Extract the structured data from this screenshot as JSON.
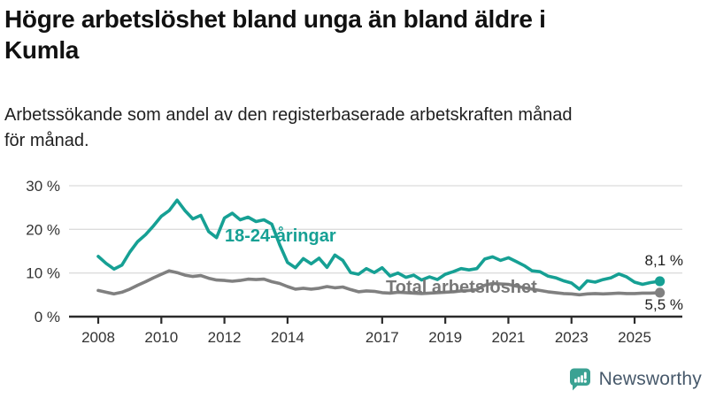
{
  "header": {
    "title_line1": "Högre arbetslöshet bland unga än bland äldre i",
    "title_line2": "Kumla",
    "subtitle_line1": "Arbetssökande som andel av den registerbaserade arbetskraften månad",
    "subtitle_line2": "för månad."
  },
  "chart_data": {
    "type": "line",
    "x_ticks": [
      "2008",
      "2010",
      "2012",
      "2014",
      "2017",
      "2019",
      "2021",
      "2023",
      "2025"
    ],
    "y_ticks": [
      "30 %",
      "20 %",
      "10 %",
      "0 %"
    ],
    "ylim": [
      0,
      30
    ],
    "grid": "horizontal",
    "series": [
      {
        "name": "18-24-åringar",
        "color": "#16A094",
        "end_label": "8,1 %",
        "end_value": 8.1,
        "points": [
          [
            2008.0,
            13.8
          ],
          [
            2008.25,
            12.2
          ],
          [
            2008.5,
            10.9
          ],
          [
            2008.75,
            11.8
          ],
          [
            2009.0,
            14.8
          ],
          [
            2009.25,
            17.2
          ],
          [
            2009.5,
            18.8
          ],
          [
            2009.75,
            20.8
          ],
          [
            2010.0,
            23.0
          ],
          [
            2010.25,
            24.3
          ],
          [
            2010.5,
            26.7
          ],
          [
            2010.75,
            24.3
          ],
          [
            2011.0,
            22.4
          ],
          [
            2011.25,
            23.2
          ],
          [
            2011.5,
            19.5
          ],
          [
            2011.75,
            18.1
          ],
          [
            2012.0,
            22.6
          ],
          [
            2012.25,
            23.7
          ],
          [
            2012.5,
            22.2
          ],
          [
            2012.75,
            22.8
          ],
          [
            2013.0,
            21.8
          ],
          [
            2013.25,
            22.2
          ],
          [
            2013.5,
            21.2
          ],
          [
            2013.75,
            16.5
          ],
          [
            2014.0,
            12.4
          ],
          [
            2014.25,
            11.2
          ],
          [
            2014.5,
            13.3
          ],
          [
            2014.75,
            12.1
          ],
          [
            2015.0,
            13.4
          ],
          [
            2015.25,
            11.3
          ],
          [
            2015.5,
            14.1
          ],
          [
            2015.75,
            12.9
          ],
          [
            2016.0,
            10.1
          ],
          [
            2016.25,
            9.7
          ],
          [
            2016.5,
            11.0
          ],
          [
            2016.75,
            10.1
          ],
          [
            2017.0,
            11.2
          ],
          [
            2017.25,
            9.3
          ],
          [
            2017.5,
            10.0
          ],
          [
            2017.75,
            9.0
          ],
          [
            2018.0,
            9.5
          ],
          [
            2018.25,
            8.4
          ],
          [
            2018.5,
            9.1
          ],
          [
            2018.75,
            8.5
          ],
          [
            2019.0,
            9.7
          ],
          [
            2019.25,
            10.3
          ],
          [
            2019.5,
            11.0
          ],
          [
            2019.75,
            10.7
          ],
          [
            2020.0,
            11.0
          ],
          [
            2020.25,
            13.2
          ],
          [
            2020.5,
            13.7
          ],
          [
            2020.75,
            12.9
          ],
          [
            2021.0,
            13.5
          ],
          [
            2021.25,
            12.6
          ],
          [
            2021.5,
            11.7
          ],
          [
            2021.75,
            10.5
          ],
          [
            2022.0,
            10.3
          ],
          [
            2022.25,
            9.3
          ],
          [
            2022.5,
            8.9
          ],
          [
            2022.75,
            8.2
          ],
          [
            2023.0,
            7.7
          ],
          [
            2023.25,
            6.3
          ],
          [
            2023.5,
            8.2
          ],
          [
            2023.75,
            7.9
          ],
          [
            2024.0,
            8.5
          ],
          [
            2024.25,
            8.9
          ],
          [
            2024.5,
            9.8
          ],
          [
            2024.75,
            9.1
          ],
          [
            2025.0,
            7.9
          ],
          [
            2025.25,
            7.4
          ],
          [
            2025.5,
            7.8
          ],
          [
            2025.8,
            8.1
          ]
        ]
      },
      {
        "name": "Total arbetslöshet",
        "color": "#808080",
        "end_label": "5,5 %",
        "end_value": 5.5,
        "points": [
          [
            2008.0,
            6.0
          ],
          [
            2008.25,
            5.6
          ],
          [
            2008.5,
            5.2
          ],
          [
            2008.75,
            5.6
          ],
          [
            2009.0,
            6.3
          ],
          [
            2009.25,
            7.2
          ],
          [
            2009.5,
            8.0
          ],
          [
            2009.75,
            8.9
          ],
          [
            2010.0,
            9.7
          ],
          [
            2010.25,
            10.5
          ],
          [
            2010.5,
            10.1
          ],
          [
            2010.75,
            9.5
          ],
          [
            2011.0,
            9.2
          ],
          [
            2011.25,
            9.4
          ],
          [
            2011.5,
            8.8
          ],
          [
            2011.75,
            8.4
          ],
          [
            2012.0,
            8.3
          ],
          [
            2012.25,
            8.1
          ],
          [
            2012.5,
            8.3
          ],
          [
            2012.75,
            8.6
          ],
          [
            2013.0,
            8.5
          ],
          [
            2013.25,
            8.6
          ],
          [
            2013.5,
            8.0
          ],
          [
            2013.75,
            7.6
          ],
          [
            2014.0,
            6.9
          ],
          [
            2014.25,
            6.3
          ],
          [
            2014.5,
            6.5
          ],
          [
            2014.75,
            6.3
          ],
          [
            2015.0,
            6.5
          ],
          [
            2015.25,
            6.9
          ],
          [
            2015.5,
            6.6
          ],
          [
            2015.75,
            6.8
          ],
          [
            2016.0,
            6.2
          ],
          [
            2016.25,
            5.7
          ],
          [
            2016.5,
            5.9
          ],
          [
            2016.75,
            5.8
          ],
          [
            2017.0,
            5.5
          ],
          [
            2017.25,
            5.4
          ],
          [
            2017.5,
            5.6
          ],
          [
            2017.75,
            5.5
          ],
          [
            2018.0,
            5.4
          ],
          [
            2018.25,
            5.3
          ],
          [
            2018.5,
            5.4
          ],
          [
            2018.75,
            5.5
          ],
          [
            2019.0,
            5.6
          ],
          [
            2019.25,
            5.7
          ],
          [
            2019.5,
            5.9
          ],
          [
            2019.75,
            6.0
          ],
          [
            2020.0,
            6.2
          ],
          [
            2020.25,
            7.2
          ],
          [
            2020.5,
            7.6
          ],
          [
            2020.75,
            7.5
          ],
          [
            2021.0,
            7.4
          ],
          [
            2021.25,
            7.0
          ],
          [
            2021.5,
            6.6
          ],
          [
            2021.75,
            6.3
          ],
          [
            2022.0,
            6.0
          ],
          [
            2022.25,
            5.7
          ],
          [
            2022.5,
            5.5
          ],
          [
            2022.75,
            5.3
          ],
          [
            2023.0,
            5.2
          ],
          [
            2023.25,
            5.0
          ],
          [
            2023.5,
            5.2
          ],
          [
            2023.75,
            5.3
          ],
          [
            2024.0,
            5.2
          ],
          [
            2024.25,
            5.3
          ],
          [
            2024.5,
            5.4
          ],
          [
            2024.75,
            5.3
          ],
          [
            2025.0,
            5.3
          ],
          [
            2025.25,
            5.4
          ],
          [
            2025.5,
            5.4
          ],
          [
            2025.8,
            5.5
          ]
        ]
      }
    ]
  },
  "branding": {
    "logo_text": "Newsworthy",
    "icon_color": "#3BA293",
    "text_color": "#47596B"
  }
}
